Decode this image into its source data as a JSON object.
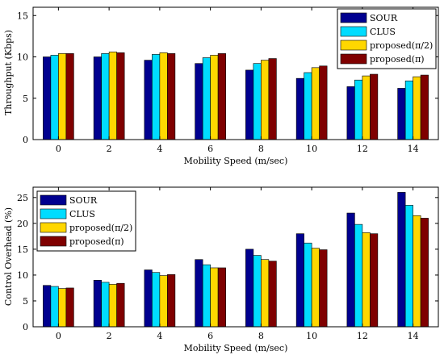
{
  "chart_data": [
    {
      "type": "bar",
      "categories": [
        "0",
        "2",
        "4",
        "6",
        "8",
        "10",
        "12",
        "14"
      ],
      "xlabel": "Mobility Speed (m/sec)",
      "ylabel": "Throughput (Kbps)",
      "ylim": [
        0,
        16
      ],
      "yticks": [
        "0",
        "5",
        "10",
        "15"
      ],
      "legend_position": "top-right",
      "series": [
        {
          "name": "SOUR",
          "color": "#00008f",
          "values": [
            10.0,
            10.0,
            9.6,
            9.2,
            8.4,
            7.4,
            6.4,
            6.2
          ]
        },
        {
          "name": "CLUS",
          "color": "#00dcff",
          "values": [
            10.2,
            10.4,
            10.3,
            9.9,
            9.2,
            8.1,
            7.2,
            7.1
          ]
        },
        {
          "name": "proposed(π/2)",
          "color": "#ffd700",
          "values": [
            10.4,
            10.6,
            10.5,
            10.2,
            9.6,
            8.7,
            7.7,
            7.6
          ]
        },
        {
          "name": "proposed(π)",
          "color": "#7f0000",
          "values": [
            10.4,
            10.5,
            10.4,
            10.4,
            9.8,
            8.9,
            7.9,
            7.8
          ]
        }
      ]
    },
    {
      "type": "bar",
      "categories": [
        "0",
        "2",
        "4",
        "6",
        "8",
        "10",
        "12",
        "14"
      ],
      "xlabel": "Mobility Speed (m/sec)",
      "ylabel": "Control Overhead (%)",
      "ylim": [
        0,
        27
      ],
      "yticks": [
        "0",
        "5",
        "10",
        "15",
        "20",
        "25"
      ],
      "legend_position": "top-left",
      "series": [
        {
          "name": "SOUR",
          "color": "#00008f",
          "values": [
            8.0,
            9.0,
            11.0,
            13.0,
            15.0,
            18.0,
            22.0,
            26.0
          ]
        },
        {
          "name": "CLUS",
          "color": "#00dcff",
          "values": [
            7.8,
            8.6,
            10.5,
            12.0,
            13.8,
            16.2,
            19.8,
            23.5
          ]
        },
        {
          "name": "proposed(π/2)",
          "color": "#ffd700",
          "values": [
            7.4,
            8.2,
            9.9,
            11.4,
            13.0,
            15.2,
            18.2,
            21.5
          ]
        },
        {
          "name": "proposed(π)",
          "color": "#7f0000",
          "values": [
            7.5,
            8.4,
            10.1,
            11.4,
            12.7,
            14.9,
            18.0,
            21.0
          ]
        }
      ]
    }
  ]
}
